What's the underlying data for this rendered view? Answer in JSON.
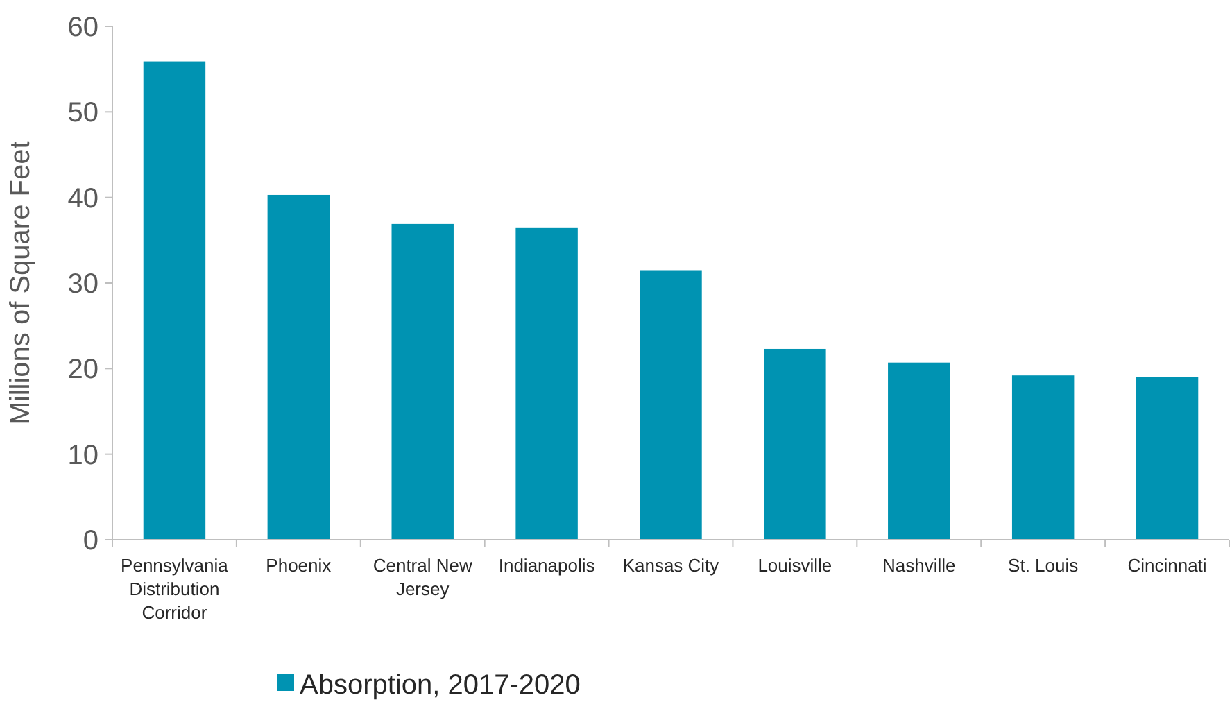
{
  "chart_data": {
    "type": "bar",
    "ylabel": "Millions of Square Feet",
    "categories": [
      "Pennsylvania Distribution Corridor",
      "Phoenix",
      "Central New Jersey",
      "Indianapolis",
      "Kansas City",
      "Louisville",
      "Nashville",
      "St. Louis",
      "Cincinnati"
    ],
    "series": [
      {
        "name": "Absorption, 2017-2020",
        "color": "#0093b2",
        "values": [
          55.9,
          40.3,
          36.9,
          36.5,
          31.5,
          22.3,
          20.7,
          19.2,
          19.0
        ]
      }
    ],
    "ylim": [
      0,
      60
    ],
    "yticks": [
      0,
      10,
      20,
      30,
      40,
      50,
      60
    ],
    "grid": false,
    "legend": "bottom"
  }
}
